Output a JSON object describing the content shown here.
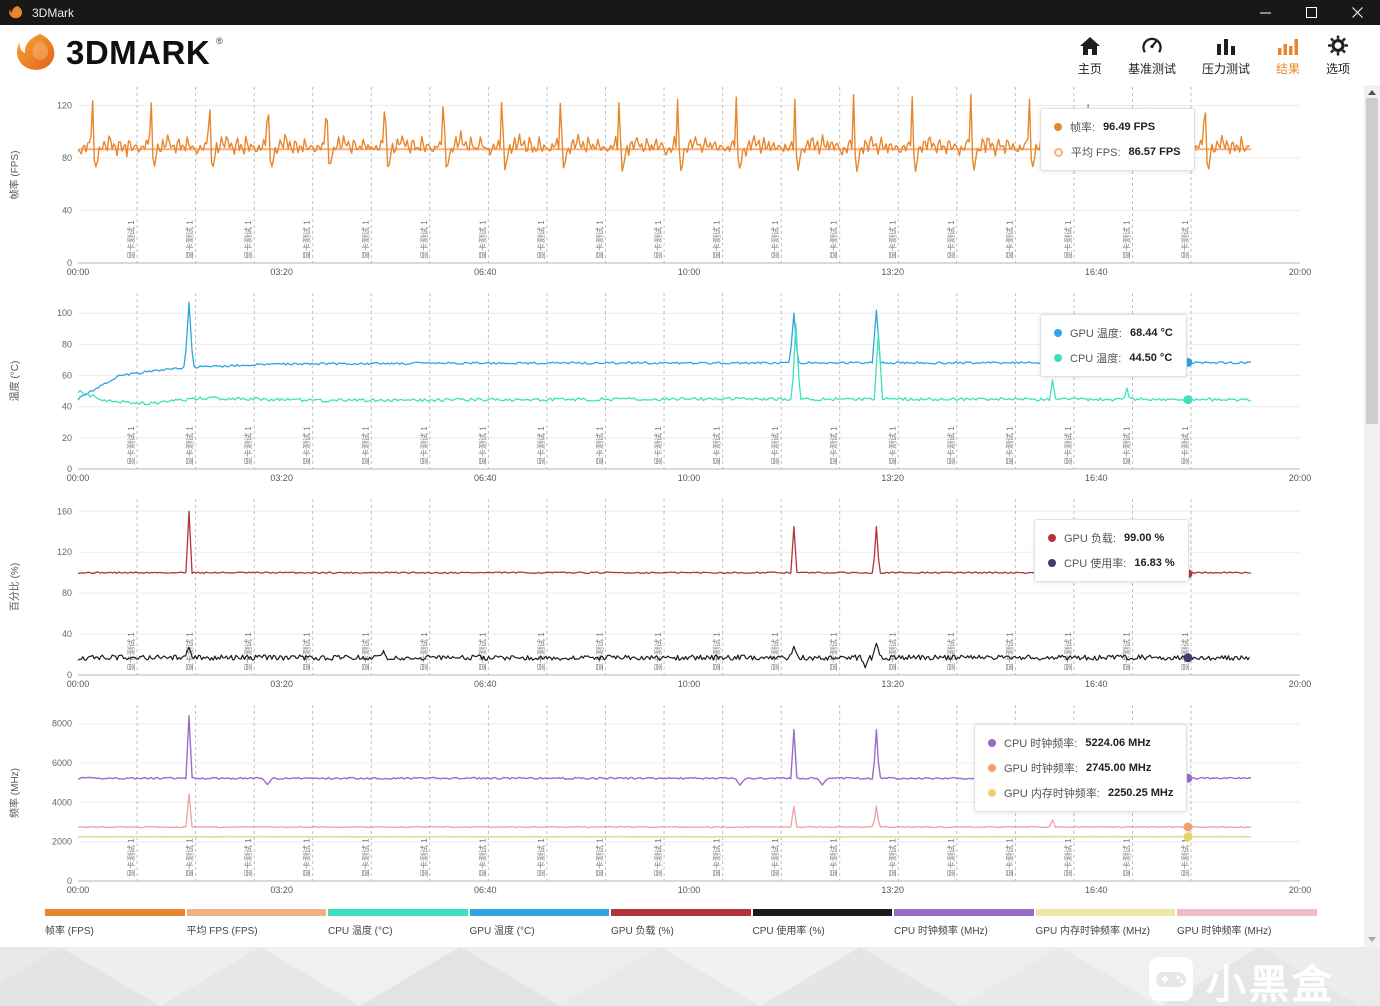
{
  "titlebar": {
    "app_name": "3DMark"
  },
  "header": {
    "logo_text": "3DMARK",
    "logo_reg": "®",
    "active_color": "#e8862d",
    "nav": [
      {
        "id": "home",
        "label": "主页",
        "icon": "home-icon",
        "active": false
      },
      {
        "id": "benchmark",
        "label": "基准测试",
        "icon": "gauge-icon",
        "active": false
      },
      {
        "id": "stress",
        "label": "压力测试",
        "icon": "stress-icon",
        "active": false
      },
      {
        "id": "results",
        "label": "结果",
        "icon": "results-icon",
        "active": true
      },
      {
        "id": "options",
        "label": "选项",
        "icon": "gear-icon",
        "active": false
      }
    ]
  },
  "watermark": {
    "text": "小黑盒"
  },
  "bottom_legend": [
    {
      "label": "帧率 (FPS)",
      "color": "#e8862d"
    },
    {
      "label": "平均 FPS (FPS)",
      "color": "#f2b183"
    },
    {
      "label": "CPU 温度 (°C)",
      "color": "#3fe0bd"
    },
    {
      "label": "GPU 温度 (°C)",
      "color": "#2ea6df"
    },
    {
      "label": "GPU 负载 (%)",
      "color": "#b4333b"
    },
    {
      "label": "CPU 使用率 (%)",
      "color": "#1b1b1d"
    },
    {
      "label": "CPU 时钟频率 (MHz)",
      "color": "#9a6cc9"
    },
    {
      "label": "GPU 内存时钟频率 (MHz)",
      "color": "#ece7a9"
    },
    {
      "label": "GPU 时钟频率 (MHz)",
      "color": "#f2bcc5"
    }
  ],
  "chart_data": [
    {
      "type": "line",
      "id": "fps",
      "ylabel": "帧率 (FPS)",
      "ylim": [
        0,
        134
      ],
      "yticks": [
        0,
        40,
        80,
        120
      ],
      "x_range_s": [
        0,
        1200
      ],
      "xticks": [
        [
          "00:00",
          0
        ],
        [
          "03:20",
          200
        ],
        [
          "06:40",
          400
        ],
        [
          "10:00",
          600
        ],
        [
          "13:20",
          800
        ],
        [
          "16:40",
          1000
        ],
        [
          "20:00",
          1200
        ]
      ],
      "sections": {
        "label": "显卡测试 1",
        "first_s": 58,
        "interval_s": 57.5,
        "count": 19
      },
      "series": [
        {
          "name": "平均 FPS",
          "color": "#f2b183",
          "lw": 2,
          "gen": {
            "seed": 3,
            "step": 8,
            "tend": 1152,
            "noise": 0,
            "base": [
              [
                0,
                86.57
              ]
            ]
          }
        },
        {
          "name": "帧率",
          "color": "#e8862d",
          "lw": 1.4,
          "gen": {
            "seed": 11,
            "step": 1.6,
            "tend": 1152,
            "noise": 2,
            "pattern": {
              "period": 57.5,
              "pts": [
                [
                  0,
                  88
                ],
                [
                  3,
                  83
                ],
                [
                  5,
                  91
                ],
                [
                  8,
                  85
                ],
                [
                  10.5,
                  95
                ],
                [
                  12.5,
                  86
                ],
                [
                  13.5,
                  121
                ],
                [
                  14.3,
                  128
                ],
                [
                  15.5,
                  84
                ],
                [
                  17,
                  70
                ],
                [
                  19,
                  78
                ],
                [
                  21,
                  90
                ],
                [
                  23.5,
                  83
                ],
                [
                  26,
                  95
                ],
                [
                  28.5,
                  85
                ],
                [
                  31,
                  99
                ],
                [
                  33.5,
                  86
                ],
                [
                  36,
                  93
                ],
                [
                  38.5,
                  82
                ],
                [
                  41,
                  97
                ],
                [
                  43.5,
                  85
                ],
                [
                  46,
                  91
                ],
                [
                  48,
                  83
                ],
                [
                  50,
                  96
                ],
                [
                  52.5,
                  85
                ],
                [
                  55,
                  90
                ],
                [
                  57.5,
                  88
                ]
              ]
            }
          }
        }
      ],
      "markers": [
        {
          "t": 1090,
          "v": 96.49,
          "color": "#e8862d"
        },
        {
          "t": 1090,
          "v": 86.57,
          "color": "#f2b183",
          "ring": true
        }
      ],
      "legend": {
        "left": 1040,
        "top": 23,
        "rows": [
          {
            "color": "#e8862d",
            "name": "帧率",
            "value": "96.49 FPS"
          },
          {
            "color": "#f2b183",
            "name": "平均 FPS",
            "value": "86.57 FPS",
            "ring": true
          }
        ]
      }
    },
    {
      "type": "line",
      "id": "temp",
      "ylabel": "温度 (°C)",
      "ylim": [
        0,
        113
      ],
      "yticks": [
        0,
        20,
        40,
        60,
        80,
        100
      ],
      "x_range_s": [
        0,
        1200
      ],
      "xticks": [
        [
          "00:00",
          0
        ],
        [
          "03:20",
          200
        ],
        [
          "06:40",
          400
        ],
        [
          "10:00",
          600
        ],
        [
          "13:20",
          800
        ],
        [
          "16:40",
          1000
        ],
        [
          "20:00",
          1200
        ]
      ],
      "sections": {
        "label": "显卡测试 1",
        "first_s": 58,
        "interval_s": 57.5,
        "count": 19
      },
      "series": [
        {
          "name": "GPU 温度",
          "color": "#2ea6df",
          "lw": 1.3,
          "gen": {
            "seed": 21,
            "step": 2,
            "tend": 1152,
            "noise": 0.7,
            "base": [
              [
                0,
                45
              ],
              [
                40,
                60
              ],
              [
                100,
                65
              ],
              [
                200,
                67.5
              ],
              [
                400,
                68
              ],
              [
                1152,
                68.3
              ]
            ],
            "spikes": [
              [
                109,
                107,
                4
              ],
              [
                703,
                100,
                4
              ],
              [
                784,
                102,
                4
              ]
            ]
          }
        },
        {
          "name": "CPU 温度",
          "color": "#3fe0bd",
          "lw": 1.3,
          "gen": {
            "seed": 22,
            "step": 2,
            "tend": 1152,
            "noise": 1,
            "base": [
              [
                0,
                50
              ],
              [
                25,
                44
              ],
              [
                70,
                42
              ],
              [
                120,
                45.5
              ],
              [
                250,
                44
              ],
              [
                600,
                45
              ],
              [
                1152,
                44.5
              ]
            ],
            "spikes": [
              [
                705,
                93,
                4
              ],
              [
                786,
                88,
                4
              ],
              [
                957,
                57,
                3
              ],
              [
                1030,
                52,
                3
              ]
            ]
          }
        }
      ],
      "markers": [
        {
          "t": 1090,
          "v": 68.44,
          "color": "#2ea6df"
        },
        {
          "t": 1090,
          "v": 44.5,
          "color": "#3fe0bd"
        }
      ],
      "legend": {
        "left": 1040,
        "top": 229,
        "rows": [
          {
            "color": "#2ea6df",
            "name": "GPU 温度",
            "value": "68.44 °C"
          },
          {
            "color": "#3fe0bd",
            "name": "CPU 温度",
            "value": "44.50 °C"
          }
        ]
      }
    },
    {
      "type": "line",
      "id": "percent",
      "ylabel": "百分比 (%)",
      "ylim": [
        0,
        172
      ],
      "yticks": [
        0,
        40,
        80,
        120,
        160
      ],
      "x_range_s": [
        0,
        1200
      ],
      "xticks": [
        [
          "00:00",
          0
        ],
        [
          "03:20",
          200
        ],
        [
          "06:40",
          400
        ],
        [
          "10:00",
          600
        ],
        [
          "13:20",
          800
        ],
        [
          "16:40",
          1000
        ],
        [
          "20:00",
          1200
        ]
      ],
      "sections": {
        "label": "显卡测试 1",
        "first_s": 58,
        "interval_s": 57.5,
        "count": 19
      },
      "series": [
        {
          "name": "GPU 负载",
          "color": "#b4333b",
          "lw": 1.3,
          "gen": {
            "seed": 31,
            "step": 2,
            "tend": 1152,
            "noise": 0.7,
            "base": [
              [
                0,
                100
              ]
            ],
            "spikes": [
              [
                109,
                160,
                3
              ],
              [
                703,
                145,
                3
              ],
              [
                784,
                145,
                3
              ]
            ]
          }
        },
        {
          "name": "CPU 使用率",
          "color": "#1c1c1e",
          "lw": 1.2,
          "gen": {
            "seed": 32,
            "step": 1.6,
            "tend": 1152,
            "noise": 2.6,
            "base": [
              [
                0,
                17
              ]
            ],
            "spikes": [
              [
                109,
                27,
                4
              ],
              [
                300,
                24,
                3
              ],
              [
                703,
                28,
                4
              ],
              [
                773,
                7,
                4
              ],
              [
                784,
                31,
                4
              ]
            ]
          }
        }
      ],
      "markers": [
        {
          "t": 1090,
          "v": 99,
          "color": "#b4333b"
        },
        {
          "t": 1090,
          "v": 16.83,
          "color": "#433a6e"
        }
      ],
      "legend": {
        "left": 1034,
        "top": 434,
        "rows": [
          {
            "color": "#b4333b",
            "name": "GPU 负载",
            "value": "99.00 %"
          },
          {
            "color": "#433a6e",
            "name": "CPU 使用率",
            "value": "16.83 %"
          }
        ]
      }
    },
    {
      "type": "line",
      "id": "freq",
      "ylabel": "频率 (MHz)",
      "ylim": [
        0,
        8950
      ],
      "yticks": [
        0,
        2000,
        4000,
        6000,
        8000
      ],
      "x_range_s": [
        0,
        1200
      ],
      "xticks": [
        [
          "00:00",
          0
        ],
        [
          "03:20",
          200
        ],
        [
          "06:40",
          400
        ],
        [
          "10:00",
          600
        ],
        [
          "13:20",
          800
        ],
        [
          "16:40",
          1000
        ],
        [
          "20:00",
          1200
        ]
      ],
      "sections": {
        "label": "显卡测试 1",
        "first_s": 58,
        "interval_s": 57.5,
        "count": 19
      },
      "series": [
        {
          "name": "GPU 内存时钟频率",
          "color": "#e6dd9a",
          "lw": 1.7,
          "gen": {
            "seed": 43,
            "step": 3,
            "tend": 1152,
            "noise": 7,
            "base": [
              [
                0,
                2250
              ]
            ]
          }
        },
        {
          "name": "GPU 时钟频率",
          "color": "#ef9fa8",
          "lw": 1.3,
          "gen": {
            "seed": 42,
            "step": 2,
            "tend": 1152,
            "noise": 28,
            "base": [
              [
                0,
                2745
              ]
            ],
            "spikes": [
              [
                109,
                4430,
                3
              ],
              [
                703,
                3800,
                3
              ],
              [
                784,
                3800,
                3
              ],
              [
                957,
                3100,
                3
              ]
            ]
          }
        },
        {
          "name": "CPU 时钟频率",
          "color": "#9a6cc9",
          "lw": 1.4,
          "gen": {
            "seed": 41,
            "step": 2,
            "tend": 1152,
            "noise": 45,
            "base": [
              [
                0,
                5224
              ]
            ],
            "spikes": [
              [
                109,
                8400,
                3
              ],
              [
                703,
                7700,
                3
              ],
              [
                784,
                7700,
                3
              ],
              [
                186,
                4900,
                5
              ],
              [
                650,
                4870,
                5
              ],
              [
                731,
                4880,
                5
              ],
              [
                1038,
                4900,
                5
              ]
            ]
          }
        }
      ],
      "markers": [
        {
          "t": 1090,
          "v": 5224.06,
          "color": "#9a6cc9"
        },
        {
          "t": 1090,
          "v": 2745,
          "color": "#eda06f"
        },
        {
          "t": 1090,
          "v": 2250.25,
          "color": "#e8d36a"
        }
      ],
      "legend": {
        "left": 974,
        "top": 639,
        "rows": [
          {
            "color": "#9a6cc9",
            "name": "CPU 时钟频率",
            "value": "5224.06 MHz"
          },
          {
            "color": "#eda06f",
            "name": "GPU 时钟频率",
            "value": "2745.00 MHz"
          },
          {
            "color": "#e8d36a",
            "name": "GPU 内存时钟频率",
            "value": "2250.25 MHz"
          }
        ]
      }
    }
  ]
}
